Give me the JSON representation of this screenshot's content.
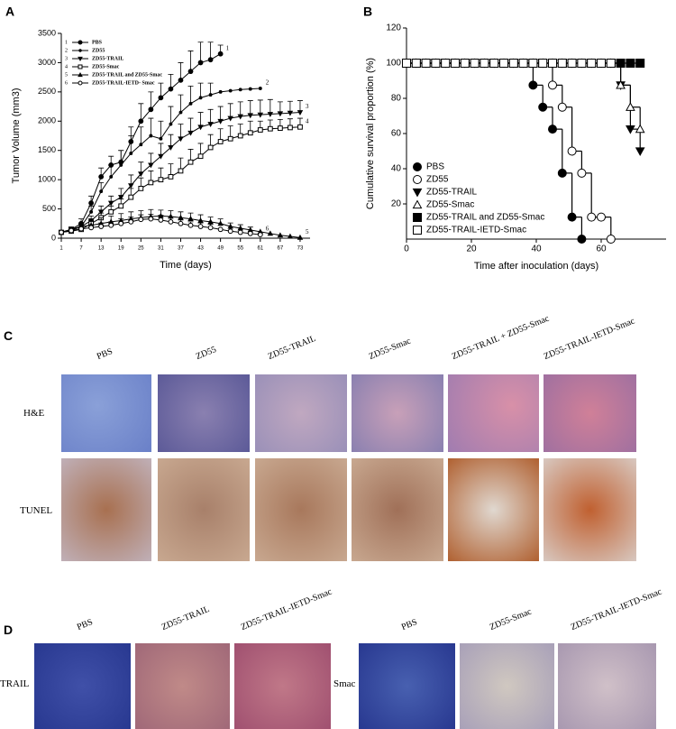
{
  "chart_data": [
    {
      "type": "line",
      "panel": "A",
      "x_label": "Time (days)",
      "y_label": "Tumor Volume (mm3)",
      "x": [
        1,
        4,
        7,
        10,
        13,
        16,
        19,
        22,
        25,
        28,
        31,
        34,
        37,
        40,
        43,
        46,
        49,
        52,
        55,
        58,
        61,
        64,
        67,
        70,
        73
      ],
      "xlim": [
        1,
        76
      ],
      "xticks": [
        1,
        7,
        13,
        19,
        25,
        31,
        37,
        43,
        49,
        55,
        61,
        67,
        73
      ],
      "ylim": [
        0,
        3500
      ],
      "yticks": [
        0,
        500,
        1000,
        1500,
        2000,
        2500,
        3000,
        3500
      ],
      "legend": "upper left",
      "series": [
        {
          "name": "PBS",
          "label": "1",
          "color": "#000000",
          "marker": "circle",
          "filled": true,
          "values": [
            100,
            150,
            250,
            600,
            1050,
            1250,
            1300,
            1650,
            2000,
            2200,
            2400,
            2550,
            2700,
            2850,
            3000,
            3050,
            3150,
            null,
            null,
            null,
            null,
            null,
            null,
            null,
            null
          ],
          "errors": [
            20,
            40,
            80,
            120,
            150,
            150,
            200,
            250,
            300,
            300,
            250,
            250,
            300,
            350,
            350,
            300,
            150,
            null,
            null,
            null,
            null,
            null,
            null,
            null,
            null
          ]
        },
        {
          "name": "ZD55",
          "label": "2",
          "color": "#000000",
          "marker": "dot",
          "filled": true,
          "values": [
            100,
            130,
            200,
            450,
            800,
            1050,
            1250,
            1450,
            1600,
            1750,
            1700,
            1950,
            2150,
            2300,
            2400,
            2450,
            2500,
            2520,
            2540,
            2550,
            2560,
            null,
            null,
            null,
            null
          ],
          "errors": [
            20,
            30,
            60,
            100,
            150,
            200,
            250,
            300,
            300,
            300,
            300,
            300,
            300,
            300,
            250,
            200,
            null,
            null,
            null,
            null,
            null,
            null,
            null,
            null,
            null
          ]
        },
        {
          "name": "ZD55-TRAIL",
          "label": "3",
          "color": "#000000",
          "marker": "triangle-down",
          "filled": true,
          "values": [
            100,
            150,
            200,
            300,
            450,
            600,
            700,
            900,
            1100,
            1250,
            1400,
            1550,
            1700,
            1800,
            1900,
            1950,
            2000,
            2050,
            2080,
            2100,
            2110,
            2120,
            2130,
            2140,
            2150
          ],
          "errors": [
            20,
            30,
            50,
            80,
            100,
            120,
            150,
            180,
            200,
            200,
            220,
            220,
            250,
            250,
            250,
            250,
            250,
            250,
            250,
            250,
            250,
            250,
            200,
            200,
            200
          ]
        },
        {
          "name": "ZD55-Smac",
          "label": "4",
          "color": "#000000",
          "marker": "square",
          "filled": false,
          "values": [
            100,
            120,
            150,
            250,
            350,
            450,
            550,
            700,
            850,
            950,
            1000,
            1050,
            1150,
            1300,
            1400,
            1550,
            1650,
            1700,
            1750,
            1800,
            1850,
            1870,
            1880,
            1890,
            1900
          ],
          "errors": [
            20,
            30,
            40,
            60,
            80,
            100,
            120,
            150,
            180,
            200,
            200,
            220,
            220,
            220,
            220,
            220,
            220,
            220,
            200,
            200,
            150,
            150,
            150,
            150,
            150
          ]
        },
        {
          "name": "ZD55-TRAIL and ZD55-Smac",
          "label": "5",
          "color": "#000000",
          "marker": "triangle-up",
          "filled": true,
          "values": [
            100,
            150,
            200,
            220,
            250,
            280,
            300,
            330,
            350,
            370,
            380,
            370,
            350,
            330,
            300,
            280,
            250,
            200,
            170,
            140,
            110,
            80,
            50,
            30,
            10
          ],
          "errors": [
            20,
            40,
            60,
            80,
            100,
            100,
            120,
            120,
            120,
            120,
            100,
            100,
            100,
            100,
            100,
            80,
            80,
            60,
            60,
            50,
            null,
            null,
            null,
            null,
            null
          ]
        },
        {
          "name": "ZD55-TRAIL-IETD- Smac",
          "label": "6",
          "color": "#000000",
          "marker": "circle",
          "filled": false,
          "values": [
            100,
            130,
            160,
            180,
            200,
            220,
            250,
            280,
            320,
            330,
            310,
            280,
            250,
            220,
            200,
            180,
            150,
            120,
            100,
            80,
            60,
            null,
            null,
            null,
            null
          ],
          "errors": [
            20,
            30,
            40,
            50,
            60,
            60,
            80,
            80,
            80,
            80,
            80,
            80,
            60,
            60,
            60,
            60,
            null,
            null,
            null,
            null,
            null,
            null,
            null,
            null,
            null
          ]
        }
      ]
    },
    {
      "type": "step",
      "panel": "B",
      "x_label": "Time after inoculation (days)",
      "y_label": "Cumulative survival proportion (%)",
      "x": [
        0,
        3,
        6,
        9,
        12,
        15,
        18,
        21,
        24,
        27,
        30,
        33,
        36,
        39,
        42,
        45,
        48,
        51,
        54,
        57,
        60,
        63,
        66,
        69,
        72
      ],
      "xlim": [
        0,
        80
      ],
      "xticks": [
        0,
        20,
        40,
        60
      ],
      "ylim": [
        0,
        120
      ],
      "yticks": [
        20,
        40,
        60,
        80,
        100,
        120
      ],
      "legend": "lower left",
      "series": [
        {
          "name": "PBS",
          "color": "#000000",
          "marker": "circle",
          "filled": true,
          "values": [
            100,
            100,
            100,
            100,
            100,
            100,
            100,
            100,
            100,
            100,
            100,
            100,
            100,
            87.5,
            75,
            62.5,
            37.5,
            12.5,
            0,
            null,
            null,
            null,
            null,
            null,
            null
          ]
        },
        {
          "name": "ZD55",
          "color": "#000000",
          "marker": "circle",
          "filled": false,
          "values": [
            100,
            100,
            100,
            100,
            100,
            100,
            100,
            100,
            100,
            100,
            100,
            100,
            100,
            100,
            100,
            87.5,
            75,
            50,
            37.5,
            12.5,
            12.5,
            0,
            null,
            null,
            null
          ]
        },
        {
          "name": "ZD55-TRAIL",
          "color": "#000000",
          "marker": "triangle-down",
          "filled": true,
          "values": [
            100,
            100,
            100,
            100,
            100,
            100,
            100,
            100,
            100,
            100,
            100,
            100,
            100,
            100,
            100,
            100,
            100,
            100,
            100,
            100,
            100,
            100,
            87.5,
            62.5,
            50
          ]
        },
        {
          "name": "ZD55-Smac",
          "color": "#000000",
          "marker": "triangle-up",
          "filled": false,
          "values": [
            100,
            100,
            100,
            100,
            100,
            100,
            100,
            100,
            100,
            100,
            100,
            100,
            100,
            100,
            100,
            100,
            100,
            100,
            100,
            100,
            100,
            100,
            87.5,
            75,
            62.5
          ]
        },
        {
          "name": "ZD55-TRAIL and ZD55-Smac",
          "color": "#000000",
          "marker": "square",
          "filled": true,
          "values": [
            100,
            100,
            100,
            100,
            100,
            100,
            100,
            100,
            100,
            100,
            100,
            100,
            100,
            100,
            100,
            100,
            100,
            100,
            100,
            100,
            100,
            100,
            100,
            100,
            100
          ]
        },
        {
          "name": "ZD55-TRAIL-IETD-Smac",
          "color": "#000000",
          "marker": "square",
          "filled": false,
          "values": [
            100,
            100,
            100,
            100,
            100,
            100,
            100,
            100,
            100,
            100,
            100,
            100,
            100,
            100,
            100,
            100,
            100,
            100,
            100,
            100,
            100,
            100,
            null,
            null,
            null
          ]
        }
      ]
    }
  ],
  "panel_c": {
    "label": "C",
    "columns": [
      "PBS",
      "ZD55",
      "ZD55-TRAIL",
      "ZD55-Smac",
      "ZD55-TRAIL + ZD55-Smac",
      "ZD55-TRAIL-IETD-Smac"
    ],
    "rows": [
      "H&E",
      "TUNEL"
    ]
  },
  "panel_d": {
    "label": "D",
    "groups": [
      {
        "row": "TRAIL",
        "columns": [
          "PBS",
          "ZD55-TRAIL",
          "ZD55-TRAIL-IETD-Smac"
        ]
      },
      {
        "row": "Smac",
        "columns": [
          "PBS",
          "ZD55-Smac",
          "ZD55-TRAIL-IETD-Smac"
        ]
      }
    ]
  }
}
